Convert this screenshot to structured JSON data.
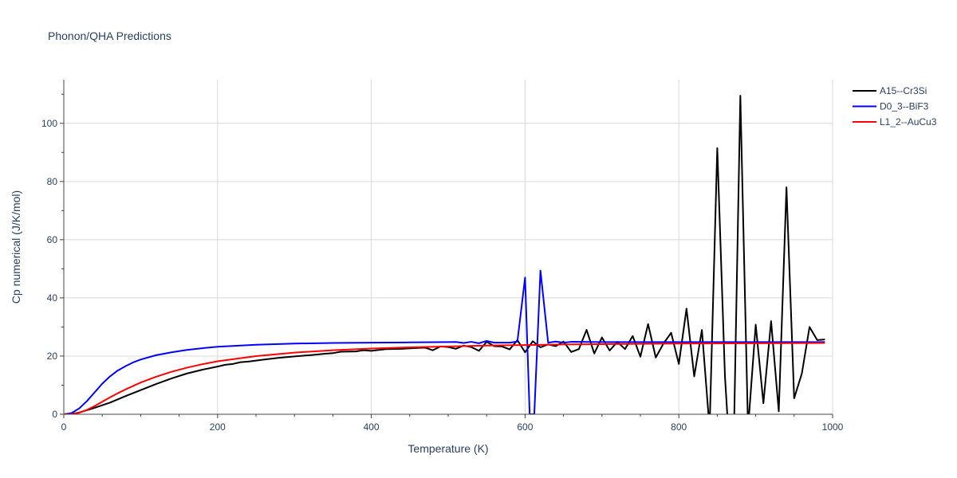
{
  "chart_data": {
    "type": "line",
    "title": "Phonon/QHA Predictions",
    "xlabel": "Temperature (K)",
    "ylabel": "Cp numerical (J/K/mol)",
    "xlim": [
      0,
      1000
    ],
    "ylim": [
      0,
      115
    ],
    "x_ticks": [
      0,
      200,
      400,
      600,
      800,
      1000
    ],
    "y_ticks": [
      0,
      20,
      40,
      60,
      80,
      100
    ],
    "grid": true,
    "legend_position": "top-right",
    "series": [
      {
        "name": "A15--Cr3Si",
        "color": "#000000",
        "points": [
          [
            0,
            0
          ],
          [
            10,
            0.1
          ],
          [
            20,
            0.6
          ],
          [
            30,
            1.4
          ],
          [
            40,
            2.2
          ],
          [
            60,
            4.0
          ],
          [
            80,
            6.2
          ],
          [
            100,
            8.3
          ],
          [
            120,
            10.4
          ],
          [
            140,
            12.3
          ],
          [
            160,
            14.0
          ],
          [
            180,
            15.3
          ],
          [
            200,
            16.4
          ],
          [
            210,
            17.0
          ],
          [
            220,
            17.3
          ],
          [
            230,
            17.9
          ],
          [
            240,
            18.1
          ],
          [
            260,
            18.8
          ],
          [
            280,
            19.4
          ],
          [
            300,
            19.9
          ],
          [
            320,
            20.3
          ],
          [
            340,
            20.8
          ],
          [
            350,
            21.0
          ],
          [
            360,
            21.5
          ],
          [
            380,
            21.6
          ],
          [
            390,
            22.0
          ],
          [
            400,
            21.8
          ],
          [
            420,
            22.4
          ],
          [
            440,
            22.5
          ],
          [
            460,
            22.8
          ],
          [
            470,
            22.9
          ],
          [
            480,
            22.0
          ],
          [
            490,
            23.3
          ],
          [
            500,
            23.1
          ],
          [
            510,
            22.5
          ],
          [
            520,
            23.6
          ],
          [
            530,
            23.1
          ],
          [
            540,
            21.8
          ],
          [
            550,
            24.9
          ],
          [
            560,
            23.4
          ],
          [
            570,
            23.3
          ],
          [
            580,
            22.3
          ],
          [
            590,
            25.5
          ],
          [
            600,
            21.3
          ],
          [
            610,
            25.1
          ],
          [
            620,
            23.0
          ],
          [
            630,
            24.0
          ],
          [
            640,
            23.4
          ],
          [
            650,
            25.0
          ],
          [
            660,
            21.4
          ],
          [
            670,
            22.4
          ],
          [
            680,
            29.0
          ],
          [
            690,
            20.9
          ],
          [
            700,
            26.4
          ],
          [
            710,
            21.9
          ],
          [
            720,
            24.9
          ],
          [
            730,
            22.4
          ],
          [
            740,
            26.9
          ],
          [
            750,
            19.8
          ],
          [
            760,
            31.0
          ],
          [
            770,
            19.5
          ],
          [
            780,
            24.3
          ],
          [
            790,
            28.0
          ],
          [
            800,
            17.3
          ],
          [
            810,
            36.3
          ],
          [
            820,
            13.0
          ],
          [
            830,
            29.0
          ],
          [
            840,
            -5.0
          ],
          [
            850,
            91.5
          ],
          [
            860,
            13.0
          ],
          [
            870,
            -30.0
          ],
          [
            880,
            109.5
          ],
          [
            890,
            -5.0
          ],
          [
            900,
            30.8
          ],
          [
            910,
            3.8
          ],
          [
            920,
            32.0
          ],
          [
            930,
            1.0
          ],
          [
            940,
            78.0
          ],
          [
            950,
            5.5
          ],
          [
            960,
            14.0
          ],
          [
            970,
            30.0
          ],
          [
            980,
            25.5
          ],
          [
            990,
            25.7
          ]
        ]
      },
      {
        "name": "D0_3--BiF3",
        "color": "#0000ff",
        "points": [
          [
            0,
            0
          ],
          [
            10,
            0.4
          ],
          [
            20,
            2.0
          ],
          [
            30,
            4.5
          ],
          [
            40,
            7.5
          ],
          [
            50,
            10.5
          ],
          [
            60,
            13.0
          ],
          [
            70,
            15.0
          ],
          [
            80,
            16.5
          ],
          [
            90,
            17.8
          ],
          [
            100,
            18.8
          ],
          [
            120,
            20.3
          ],
          [
            140,
            21.3
          ],
          [
            160,
            22.1
          ],
          [
            180,
            22.7
          ],
          [
            200,
            23.2
          ],
          [
            250,
            23.9
          ],
          [
            300,
            24.3
          ],
          [
            350,
            24.5
          ],
          [
            400,
            24.6
          ],
          [
            450,
            24.7
          ],
          [
            500,
            24.8
          ],
          [
            510,
            24.85
          ],
          [
            520,
            24.5
          ],
          [
            530,
            24.9
          ],
          [
            540,
            24.4
          ],
          [
            550,
            25.2
          ],
          [
            560,
            24.6
          ],
          [
            570,
            24.6
          ],
          [
            580,
            24.6
          ],
          [
            590,
            25.0
          ],
          [
            600,
            47.0
          ],
          [
            606,
            0.0
          ],
          [
            612,
            0.0
          ],
          [
            620,
            49.4
          ],
          [
            630,
            24.6
          ],
          [
            640,
            25.0
          ],
          [
            650,
            24.6
          ],
          [
            660,
            24.9
          ],
          [
            700,
            24.8
          ],
          [
            800,
            24.8
          ],
          [
            900,
            24.8
          ],
          [
            990,
            24.8
          ]
        ]
      },
      {
        "name": "L1_2--AuCu3",
        "color": "#ff0000",
        "points": [
          [
            0,
            0
          ],
          [
            10,
            0.0
          ],
          [
            20,
            0.5
          ],
          [
            30,
            1.5
          ],
          [
            40,
            2.8
          ],
          [
            50,
            4.3
          ],
          [
            60,
            5.8
          ],
          [
            70,
            7.2
          ],
          [
            80,
            8.5
          ],
          [
            100,
            10.9
          ],
          [
            120,
            12.9
          ],
          [
            140,
            14.6
          ],
          [
            160,
            16.0
          ],
          [
            180,
            17.2
          ],
          [
            200,
            18.2
          ],
          [
            250,
            20.0
          ],
          [
            300,
            21.2
          ],
          [
            350,
            22.0
          ],
          [
            400,
            22.6
          ],
          [
            450,
            23.0
          ],
          [
            500,
            23.3
          ],
          [
            550,
            23.6
          ],
          [
            600,
            23.8
          ],
          [
            650,
            24.0
          ],
          [
            700,
            24.1
          ],
          [
            800,
            24.3
          ],
          [
            900,
            24.4
          ],
          [
            990,
            24.5
          ]
        ]
      }
    ]
  }
}
